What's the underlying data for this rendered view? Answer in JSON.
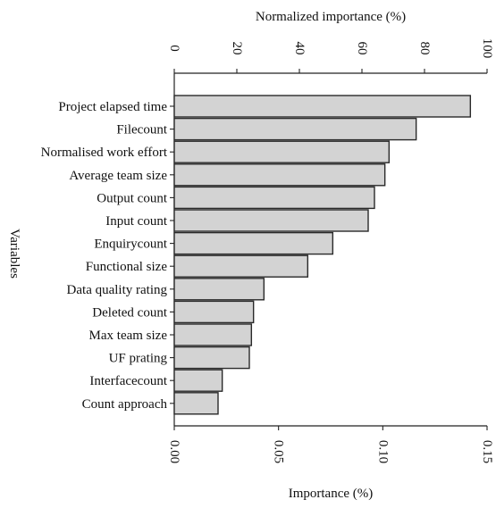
{
  "chart_data": {
    "type": "bar",
    "orientation": "horizontal",
    "ylabel": "Variables",
    "bottom_axis": {
      "label": "Importance (%)",
      "ticks": [
        "0.00",
        "0.05",
        "0.10",
        "0.15"
      ],
      "range": [
        0,
        0.15
      ]
    },
    "top_axis": {
      "label": "Normalized importance (%)",
      "ticks": [
        "0",
        "20",
        "40",
        "60",
        "80",
        "100"
      ],
      "range": [
        0,
        100
      ]
    },
    "grid": false,
    "bar_color": "#d3d3d3",
    "categories": [
      "Project elapsed time",
      "Filecount",
      "Normalised work effort",
      "Average team size",
      "Output count",
      "Input count",
      "Enquirycount",
      "Functional size",
      "Data quality rating",
      "Deleted count",
      "Max team size",
      "UF prating",
      "Interfacecount",
      "Count approach"
    ],
    "values": [
      0.142,
      0.116,
      0.103,
      0.101,
      0.096,
      0.093,
      0.076,
      0.064,
      0.043,
      0.038,
      0.037,
      0.036,
      0.023,
      0.021
    ]
  }
}
